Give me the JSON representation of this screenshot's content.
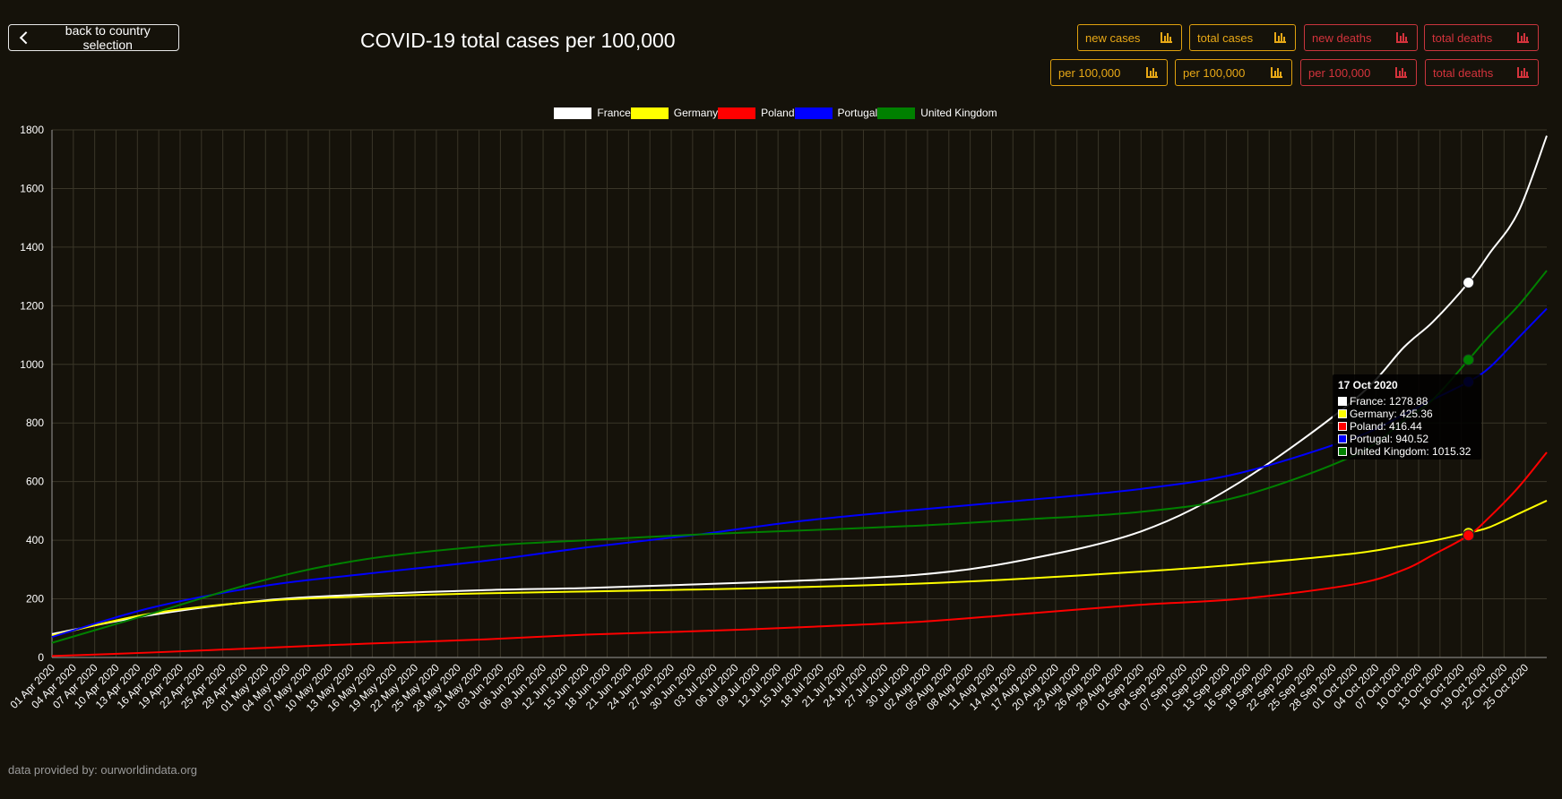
{
  "back_button": {
    "label": "back to country selection"
  },
  "page_title": "COVID-19 total cases per 100,000",
  "toolbar": {
    "row1": [
      {
        "label": "new cases",
        "color": "orange"
      },
      {
        "label": "total cases",
        "color": "orange"
      },
      {
        "label": "new deaths",
        "color": "red"
      },
      {
        "label": "total deaths",
        "color": "red"
      }
    ],
    "row2": [
      {
        "label": "per 100,000",
        "color": "orange"
      },
      {
        "label": "per 100,000",
        "color": "orange"
      },
      {
        "label": "per 100,000",
        "color": "red"
      },
      {
        "label": "total deaths",
        "color": "red"
      }
    ],
    "icon": "bar-chart-icon"
  },
  "colors": {
    "orange": "#e8a816",
    "red": "#d4333c",
    "background": "#15120a"
  },
  "tooltip": {
    "date": "17 Oct 2020",
    "rows": [
      {
        "label": "France: 1278.88",
        "color": "#ffffff"
      },
      {
        "label": "Germany: 425.36",
        "color": "#ffff00"
      },
      {
        "label": "Poland: 416.44",
        "color": "#ff0000"
      },
      {
        "label": "Portugal: 940.52",
        "color": "#0000ff"
      },
      {
        "label": "United Kingdom: 1015.32",
        "color": "#008000"
      }
    ]
  },
  "source_text": "data provided by: ourworldindata.org",
  "chart_data": {
    "type": "line",
    "title": "",
    "xlabel": "",
    "ylabel": "",
    "ylim": [
      0,
      1800
    ],
    "yticks": [
      0,
      200,
      400,
      600,
      800,
      1000,
      1200,
      1400,
      1600,
      1800
    ],
    "x_start": "2020-04-01",
    "x_end": "2020-10-28",
    "grid": true,
    "legend_position": "top-center",
    "x_tick_labels": [
      "01 Apr 2020",
      "04 Apr 2020",
      "07 Apr 2020",
      "10 Apr 2020",
      "13 Apr 2020",
      "16 Apr 2020",
      "19 Apr 2020",
      "22 Apr 2020",
      "25 Apr 2020",
      "28 Apr 2020",
      "01 May 2020",
      "04 May 2020",
      "07 May 2020",
      "10 May 2020",
      "13 May 2020",
      "16 May 2020",
      "19 May 2020",
      "22 May 2020",
      "25 May 2020",
      "28 May 2020",
      "31 May 2020",
      "03 Jun 2020",
      "06 Jun 2020",
      "09 Jun 2020",
      "12 Jun 2020",
      "15 Jun 2020",
      "18 Jun 2020",
      "21 Jun 2020",
      "24 Jun 2020",
      "27 Jun 2020",
      "30 Jun 2020",
      "03 Jul 2020",
      "06 Jul 2020",
      "09 Jul 2020",
      "12 Jul 2020",
      "15 Jul 2020",
      "18 Jul 2020",
      "21 Jul 2020",
      "24 Jul 2020",
      "27 Jul 2020",
      "30 Jul 2020",
      "02 Aug 2020",
      "05 Aug 2020",
      "08 Aug 2020",
      "11 Aug 2020",
      "14 Aug 2020",
      "17 Aug 2020",
      "20 Aug 2020",
      "23 Aug 2020",
      "26 Aug 2020",
      "29 Aug 2020",
      "01 Sep 2020",
      "04 Sep 2020",
      "07 Sep 2020",
      "10 Sep 2020",
      "13 Sep 2020",
      "16 Sep 2020",
      "19 Sep 2020",
      "22 Sep 2020",
      "25 Sep 2020",
      "28 Sep 2020",
      "01 Oct 2020",
      "04 Oct 2020",
      "07 Oct 2020",
      "10 Oct 2020",
      "13 Oct 2020",
      "16 Oct 2020",
      "19 Oct 2020",
      "22 Oct 2020",
      "25 Oct 2020"
    ],
    "series": [
      {
        "name": "France",
        "color": "#ffffff",
        "x": [
          "2020-04-01",
          "2020-04-15",
          "2020-05-01",
          "2020-05-15",
          "2020-06-01",
          "2020-06-15",
          "2020-07-01",
          "2020-07-15",
          "2020-08-01",
          "2020-08-15",
          "2020-09-01",
          "2020-09-15",
          "2020-10-01",
          "2020-10-08",
          "2020-10-12",
          "2020-10-17",
          "2020-10-20",
          "2020-10-24",
          "2020-10-28"
        ],
        "y": [
          80,
          145,
          195,
          215,
          230,
          237,
          250,
          262,
          283,
          330,
          430,
          600,
          880,
          1060,
          1145,
          1278.88,
          1380,
          1520,
          1780
        ]
      },
      {
        "name": "Germany",
        "color": "#ffff00",
        "x": [
          "2020-04-01",
          "2020-04-15",
          "2020-05-01",
          "2020-05-15",
          "2020-06-01",
          "2020-06-15",
          "2020-07-01",
          "2020-07-15",
          "2020-08-01",
          "2020-08-15",
          "2020-09-01",
          "2020-09-15",
          "2020-10-01",
          "2020-10-08",
          "2020-10-12",
          "2020-10-17",
          "2020-10-20",
          "2020-10-24",
          "2020-10-28"
        ],
        "y": [
          75,
          150,
          193,
          208,
          219,
          225,
          232,
          240,
          252,
          268,
          293,
          318,
          355,
          382,
          398,
          425.36,
          445,
          490,
          535
        ]
      },
      {
        "name": "Poland",
        "color": "#ff0000",
        "x": [
          "2020-04-01",
          "2020-04-15",
          "2020-05-01",
          "2020-05-15",
          "2020-06-01",
          "2020-06-15",
          "2020-07-01",
          "2020-07-15",
          "2020-08-01",
          "2020-08-15",
          "2020-09-01",
          "2020-09-15",
          "2020-10-01",
          "2020-10-08",
          "2020-10-12",
          "2020-10-17",
          "2020-10-20",
          "2020-10-24",
          "2020-10-28"
        ],
        "y": [
          5,
          17,
          33,
          47,
          62,
          78,
          90,
          103,
          122,
          148,
          180,
          200,
          250,
          300,
          350,
          416.44,
          480,
          580,
          700
        ]
      },
      {
        "name": "Portugal",
        "color": "#0000ff",
        "x": [
          "2020-04-01",
          "2020-04-15",
          "2020-05-01",
          "2020-05-15",
          "2020-06-01",
          "2020-06-15",
          "2020-07-01",
          "2020-07-15",
          "2020-08-01",
          "2020-08-15",
          "2020-09-01",
          "2020-09-15",
          "2020-10-01",
          "2020-10-08",
          "2020-10-12",
          "2020-10-17",
          "2020-10-20",
          "2020-10-24",
          "2020-10-28"
        ],
        "y": [
          70,
          170,
          245,
          285,
          330,
          375,
          420,
          465,
          505,
          535,
          575,
          630,
          750,
          830,
          880,
          940.52,
          990,
          1090,
          1190
        ]
      },
      {
        "name": "United Kingdom",
        "color": "#008000",
        "x": [
          "2020-04-01",
          "2020-04-15",
          "2020-05-01",
          "2020-05-15",
          "2020-06-01",
          "2020-06-15",
          "2020-07-01",
          "2020-07-15",
          "2020-08-01",
          "2020-08-15",
          "2020-09-01",
          "2020-09-15",
          "2020-10-01",
          "2020-10-08",
          "2020-10-12",
          "2020-10-17",
          "2020-10-20",
          "2020-10-24",
          "2020-10-28"
        ],
        "y": [
          50,
          150,
          265,
          335,
          380,
          400,
          420,
          433,
          450,
          470,
          497,
          550,
          690,
          810,
          880,
          1015.32,
          1100,
          1200,
          1320
        ]
      }
    ],
    "hover_date": "2020-10-17"
  }
}
